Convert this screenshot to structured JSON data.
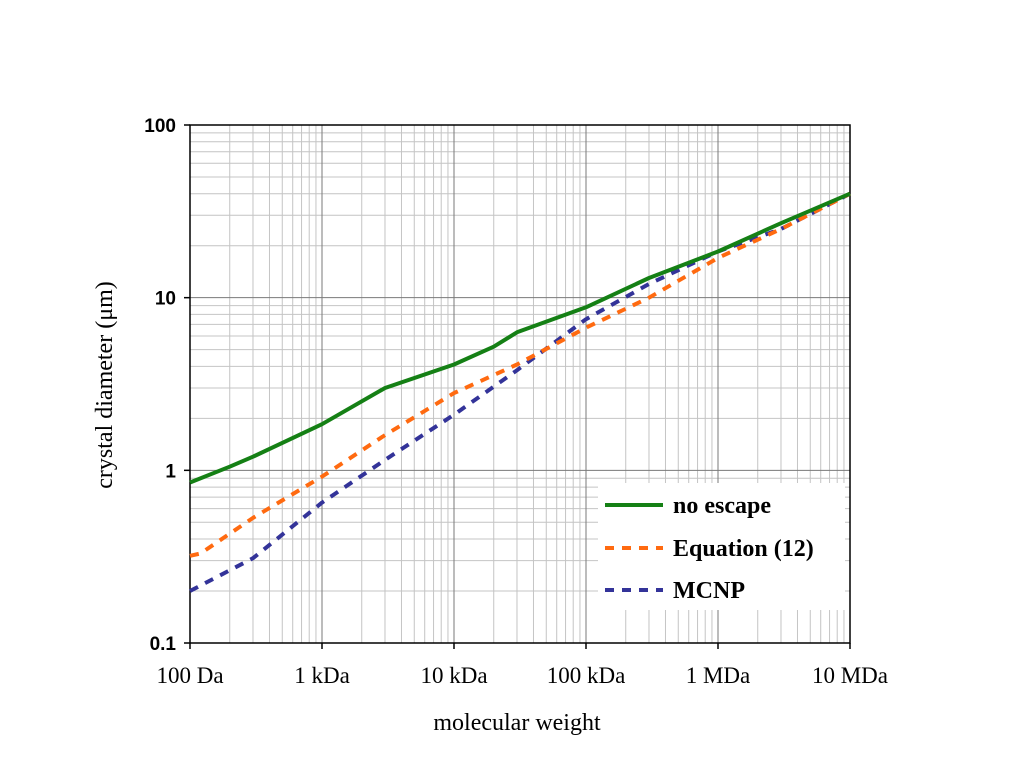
{
  "chart_data": {
    "type": "line",
    "xlabel": "molecular weight",
    "ylabel": "crystal diameter (μm)",
    "x_scale": "log",
    "y_scale": "log",
    "xlim": [
      100,
      10000000
    ],
    "ylim": [
      0.1,
      100
    ],
    "x_ticks": [
      {
        "value": 100,
        "label": "100 Da"
      },
      {
        "value": 1000,
        "label": "1 kDa"
      },
      {
        "value": 10000,
        "label": "10 kDa"
      },
      {
        "value": 100000,
        "label": "100 kDa"
      },
      {
        "value": 1000000,
        "label": "1 MDa"
      },
      {
        "value": 10000000,
        "label": "10 MDa"
      }
    ],
    "y_ticks": [
      {
        "value": 0.1,
        "label": "0.1"
      },
      {
        "value": 1,
        "label": "1"
      },
      {
        "value": 10,
        "label": "10"
      },
      {
        "value": 100,
        "label": "100"
      }
    ],
    "grid": "major and minor",
    "legend_position": "bottom-right",
    "series": [
      {
        "name": "no escape",
        "color": "#158015",
        "style": "solid",
        "x": [
          100,
          200,
          300,
          1000,
          3000,
          10000,
          20000,
          30000,
          100000,
          300000,
          1000000,
          3000000,
          10000000
        ],
        "y": [
          0.85,
          1.05,
          1.2,
          1.85,
          3.0,
          4.1,
          5.2,
          6.3,
          8.8,
          13.0,
          18.5,
          27.0,
          40.0
        ]
      },
      {
        "name": "Equation (12)",
        "color": "#ff6a10",
        "style": "dashed",
        "x": [
          100,
          120,
          300,
          1000,
          3000,
          10000,
          30000,
          100000,
          300000,
          1000000,
          3000000,
          10000000
        ],
        "y": [
          0.32,
          0.33,
          0.53,
          0.92,
          1.6,
          2.8,
          4.1,
          6.7,
          10.0,
          17.0,
          25.0,
          40.0
        ]
      },
      {
        "name": "MCNP",
        "color": "#333399",
        "style": "dashed",
        "x": [
          100,
          300,
          1000,
          3000,
          10000,
          30000,
          100000,
          300000,
          1000000,
          3000000,
          10000000
        ],
        "y": [
          0.2,
          0.31,
          0.65,
          1.15,
          2.1,
          3.8,
          7.5,
          12.0,
          18.5,
          25.0,
          40.0
        ]
      }
    ]
  }
}
